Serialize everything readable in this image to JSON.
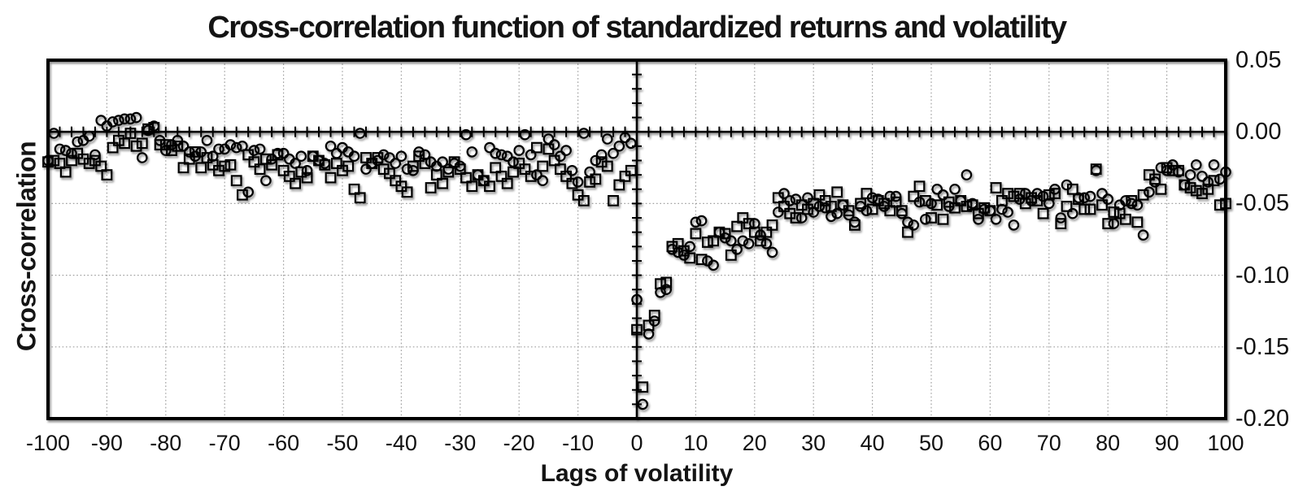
{
  "figure": {
    "title": "Cross-correlation function of standardized returns and volatility",
    "x_axis_title": "Lags of volatility",
    "y_axis_title": "Cross-correlation"
  },
  "chart_data": {
    "type": "scatter",
    "title": "Cross-correlation function of standardized returns and volatility",
    "xlabel": "Lags of volatility",
    "ylabel": "Cross-correlation",
    "xlim": [
      -100,
      100
    ],
    "ylim": [
      -0.2,
      0.05
    ],
    "grid": "dotted",
    "legend_position": "none",
    "axis_cross": [
      0,
      0
    ],
    "y_tick_label_side": "right",
    "x_gridlines_every": 10,
    "y_gridlines": [
      -0.05,
      -0.1,
      -0.15
    ],
    "x_minor_tick_every": 2,
    "y_minor_tick_every": 0.01,
    "marker_color": "#000000",
    "grid_color": "#a0a0a0",
    "x_ticks": [
      {
        "label": "-100",
        "value": -100
      },
      {
        "label": "-90",
        "value": -90
      },
      {
        "label": "-80",
        "value": -80
      },
      {
        "label": "-70",
        "value": -70
      },
      {
        "label": "-60",
        "value": -60
      },
      {
        "label": "-50",
        "value": -50
      },
      {
        "label": "-40",
        "value": -40
      },
      {
        "label": "-30",
        "value": -30
      },
      {
        "label": "-20",
        "value": -20
      },
      {
        "label": "-10",
        "value": -10
      },
      {
        "label": "0",
        "value": 0
      },
      {
        "label": "10",
        "value": 10
      },
      {
        "label": "20",
        "value": 20
      },
      {
        "label": "30",
        "value": 30
      },
      {
        "label": "40",
        "value": 40
      },
      {
        "label": "50",
        "value": 50
      },
      {
        "label": "60",
        "value": 60
      },
      {
        "label": "70",
        "value": 70
      },
      {
        "label": "80",
        "value": 80
      },
      {
        "label": "90",
        "value": 90
      },
      {
        "label": "100",
        "value": 100
      }
    ],
    "y_ticks": [
      {
        "label": "0.05",
        "value": 0.05
      },
      {
        "label": "0.00",
        "value": 0.0
      },
      {
        "label": "-0.05",
        "value": -0.05
      },
      {
        "label": "-0.10",
        "value": -0.1
      },
      {
        "label": "-0.15",
        "value": -0.15
      },
      {
        "label": "-0.20",
        "value": -0.2
      }
    ],
    "series": [
      {
        "name": "circles",
        "marker": "circle",
        "lag_start": -100,
        "lag_step": 1,
        "values": [
          -0.02,
          -0.001,
          -0.012,
          -0.013,
          -0.015,
          -0.007,
          -0.006,
          -0.003,
          -0.016,
          0.008,
          0.004,
          0.007,
          0.008,
          0.009,
          0.009,
          0.01,
          -0.018,
          0.001,
          0.004,
          -0.006,
          -0.013,
          -0.009,
          -0.006,
          -0.01,
          -0.014,
          -0.017,
          -0.014,
          -0.006,
          -0.017,
          -0.012,
          -0.012,
          -0.009,
          -0.011,
          -0.01,
          -0.042,
          -0.013,
          -0.012,
          -0.034,
          -0.019,
          -0.015,
          -0.015,
          -0.019,
          -0.022,
          -0.017,
          -0.027,
          -0.017,
          -0.02,
          -0.022,
          -0.01,
          -0.015,
          -0.011,
          -0.014,
          -0.017,
          -0.001,
          -0.026,
          -0.022,
          -0.02,
          -0.016,
          -0.018,
          -0.022,
          -0.017,
          -0.026,
          -0.027,
          -0.014,
          -0.016,
          -0.021,
          -0.024,
          -0.021,
          -0.026,
          -0.022,
          -0.024,
          -0.002,
          -0.014,
          -0.03,
          -0.034,
          -0.011,
          -0.015,
          -0.016,
          -0.017,
          -0.021,
          -0.013,
          -0.002,
          -0.016,
          -0.03,
          -0.034,
          -0.005,
          -0.009,
          -0.017,
          -0.013,
          -0.027,
          -0.035,
          -0.001,
          -0.028,
          -0.02,
          -0.016,
          -0.005,
          -0.015,
          -0.01,
          -0.004,
          -0.008,
          -0.117,
          -0.19,
          -0.141,
          -0.132,
          -0.112,
          -0.11,
          -0.082,
          -0.084,
          -0.086,
          -0.08,
          -0.063,
          -0.062,
          -0.09,
          -0.093,
          -0.07,
          -0.074,
          -0.076,
          -0.082,
          -0.076,
          -0.078,
          -0.064,
          -0.072,
          -0.078,
          -0.084,
          -0.056,
          -0.043,
          -0.048,
          -0.047,
          -0.06,
          -0.046,
          -0.056,
          -0.052,
          -0.053,
          -0.059,
          -0.057,
          -0.051,
          -0.058,
          -0.063,
          -0.052,
          -0.055,
          -0.046,
          -0.047,
          -0.052,
          -0.045,
          -0.045,
          -0.057,
          -0.063,
          -0.065,
          -0.049,
          -0.061,
          -0.05,
          -0.04,
          -0.044,
          -0.052,
          -0.04,
          -0.048,
          -0.03,
          -0.05,
          -0.061,
          -0.054,
          -0.055,
          -0.061,
          -0.054,
          -0.056,
          -0.065,
          -0.047,
          -0.043,
          -0.048,
          -0.043,
          -0.045,
          -0.05,
          -0.04,
          -0.06,
          -0.037,
          -0.057,
          -0.046,
          -0.046,
          -0.045,
          -0.027,
          -0.043,
          -0.047,
          -0.064,
          -0.051,
          -0.048,
          -0.05,
          -0.051,
          -0.072,
          -0.042,
          -0.035,
          -0.025,
          -0.027,
          -0.023,
          -0.028,
          -0.037,
          -0.03,
          -0.023,
          -0.031,
          -0.035,
          -0.023,
          -0.033,
          -0.028
        ]
      },
      {
        "name": "squares",
        "marker": "square",
        "lag_start": -100,
        "lag_step": 1,
        "values": [
          -0.021,
          -0.02,
          -0.022,
          -0.028,
          -0.02,
          -0.015,
          -0.019,
          -0.022,
          -0.02,
          -0.024,
          -0.03,
          -0.011,
          -0.006,
          -0.008,
          -0.001,
          -0.01,
          -0.008,
          0.002,
          0.003,
          -0.009,
          -0.009,
          -0.013,
          -0.01,
          -0.025,
          -0.019,
          -0.014,
          -0.025,
          -0.018,
          -0.023,
          -0.027,
          -0.024,
          -0.023,
          -0.034,
          -0.044,
          -0.016,
          -0.021,
          -0.026,
          -0.019,
          -0.023,
          -0.016,
          -0.027,
          -0.031,
          -0.036,
          -0.028,
          -0.032,
          -0.017,
          -0.02,
          -0.023,
          -0.032,
          -0.022,
          -0.027,
          -0.024,
          -0.04,
          -0.046,
          -0.018,
          -0.022,
          -0.018,
          -0.026,
          -0.029,
          -0.034,
          -0.038,
          -0.042,
          -0.024,
          -0.017,
          -0.022,
          -0.039,
          -0.03,
          -0.036,
          -0.028,
          -0.021,
          -0.026,
          -0.032,
          -0.038,
          -0.03,
          -0.034,
          -0.038,
          -0.025,
          -0.031,
          -0.036,
          -0.028,
          -0.022,
          -0.026,
          -0.031,
          -0.011,
          -0.024,
          -0.012,
          -0.02,
          -0.026,
          -0.031,
          -0.036,
          -0.044,
          -0.048,
          -0.035,
          -0.033,
          -0.021,
          -0.024,
          -0.048,
          -0.037,
          -0.031,
          -0.027,
          -0.138,
          -0.178,
          -0.135,
          -0.128,
          -0.106,
          -0.105,
          -0.08,
          -0.078,
          -0.083,
          -0.088,
          -0.071,
          -0.089,
          -0.077,
          -0.076,
          -0.07,
          -0.071,
          -0.086,
          -0.066,
          -0.06,
          -0.064,
          -0.07,
          -0.076,
          -0.07,
          -0.065,
          -0.046,
          -0.052,
          -0.057,
          -0.06,
          -0.051,
          -0.054,
          -0.05,
          -0.044,
          -0.048,
          -0.052,
          -0.042,
          -0.051,
          -0.055,
          -0.065,
          -0.05,
          -0.043,
          -0.054,
          -0.048,
          -0.05,
          -0.055,
          -0.049,
          -0.055,
          -0.07,
          -0.045,
          -0.038,
          -0.048,
          -0.06,
          -0.051,
          -0.061,
          -0.049,
          -0.053,
          -0.048,
          -0.052,
          -0.051,
          -0.057,
          -0.053,
          -0.055,
          -0.039,
          -0.048,
          -0.043,
          -0.045,
          -0.043,
          -0.05,
          -0.046,
          -0.048,
          -0.057,
          -0.044,
          -0.043,
          -0.064,
          -0.052,
          -0.04,
          -0.047,
          -0.054,
          -0.054,
          -0.026,
          -0.051,
          -0.064,
          -0.056,
          -0.057,
          -0.061,
          -0.048,
          -0.063,
          -0.044,
          -0.03,
          -0.033,
          -0.04,
          -0.025,
          -0.027,
          -0.027,
          -0.037,
          -0.039,
          -0.041,
          -0.043,
          -0.04,
          -0.034,
          -0.051,
          -0.05
        ]
      }
    ]
  }
}
